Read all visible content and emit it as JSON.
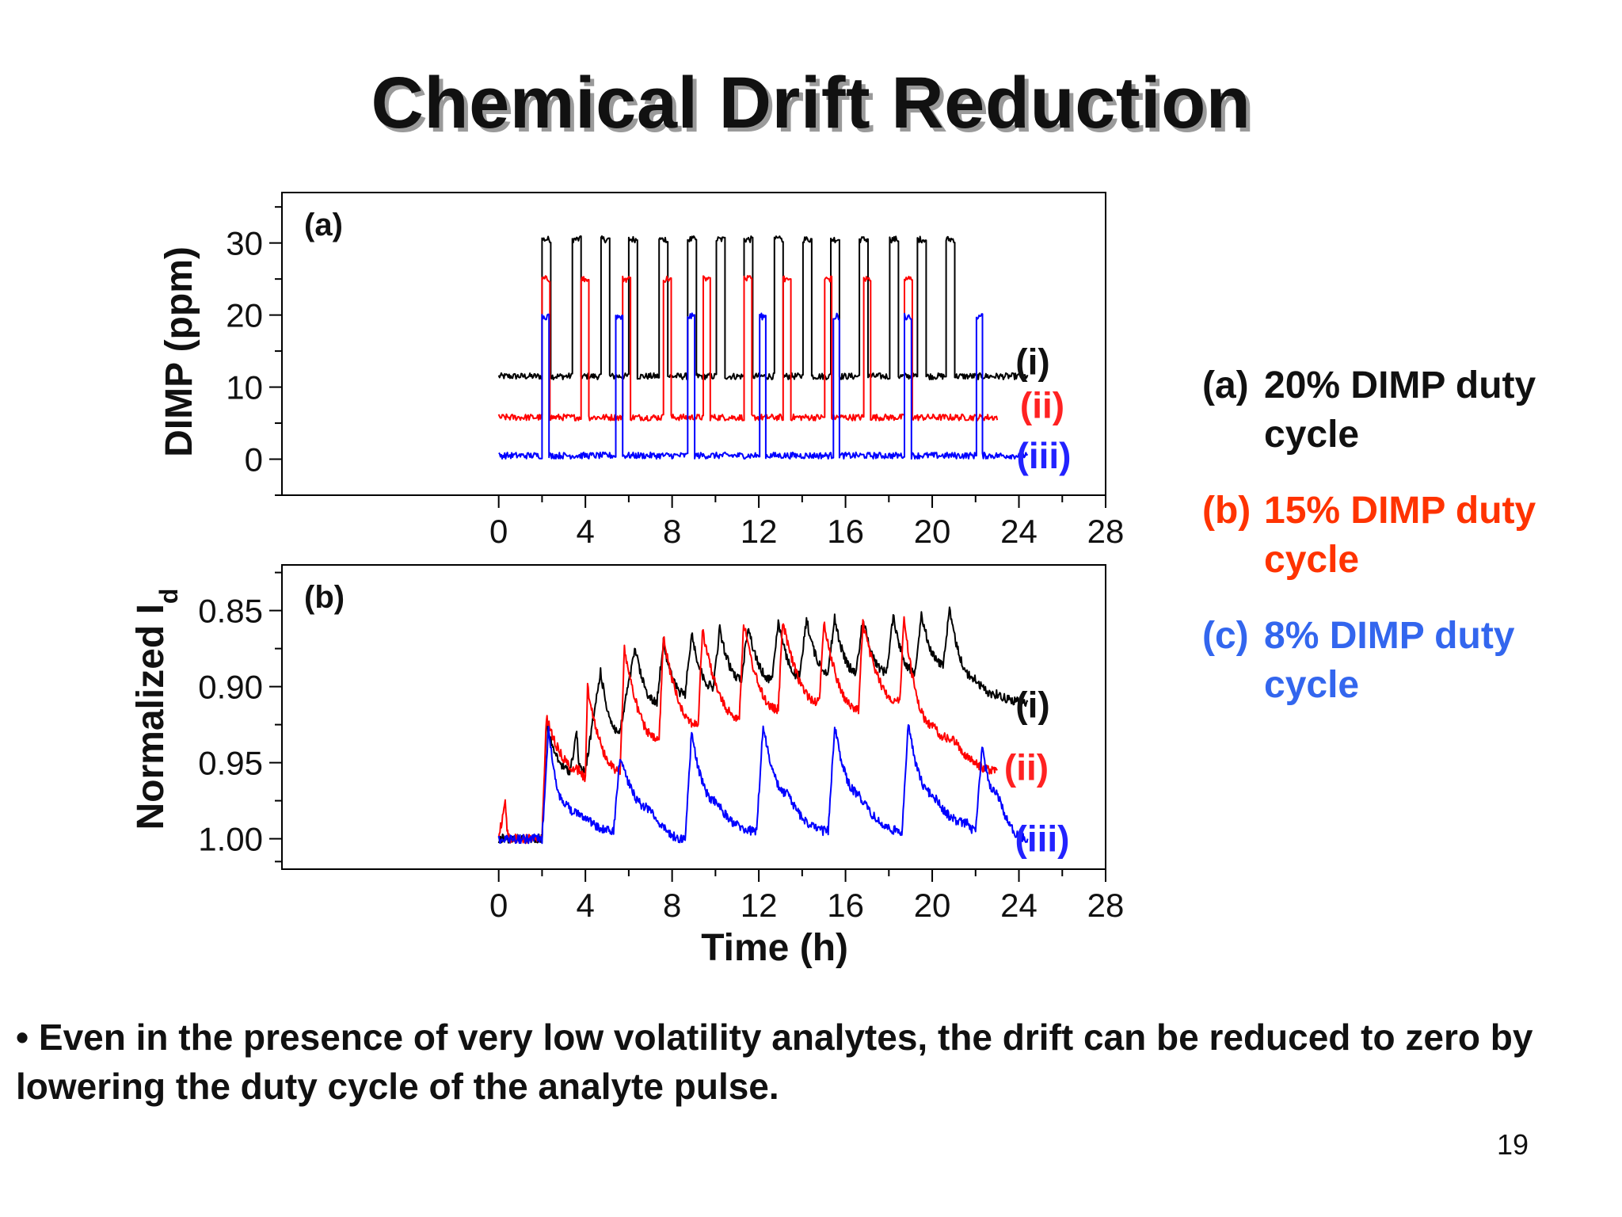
{
  "slide": {
    "title": "Chemical Drift Reduction",
    "bullet": "• Even in the presence of very low volatility analytes, the drift can be reduced to zero by lowering the duty cycle of the analyte pulse.",
    "page_number": "19"
  },
  "legend": {
    "items": [
      {
        "label": "(a)",
        "text_line1": "20% DIMP duty",
        "text_line2": "cycle",
        "color": "#111111"
      },
      {
        "label": "(b)",
        "text_line1": "15% DIMP duty",
        "text_line2": "cycle",
        "color": "#ff3300"
      },
      {
        "label": "(c)",
        "text_line1": "8% DIMP duty",
        "text_line2": "cycle",
        "color": "#3366ee"
      }
    ]
  },
  "chart_data": [
    {
      "type": "line",
      "panel_label": "(a)",
      "xlabel": "",
      "ylabel": "DIMP (ppm)",
      "xlim": [
        -10,
        28
      ],
      "ylim": [
        -5,
        37
      ],
      "xticks": [
        0,
        4,
        8,
        12,
        16,
        20,
        24,
        28
      ],
      "yticks": [
        0,
        10,
        20,
        30
      ],
      "series": [
        {
          "name": "(i)",
          "color": "#000000",
          "baseline": 11.5,
          "pulse_height": 30.5,
          "pulse_width": 0.4,
          "x_end": 24.4,
          "pulse_starts": [
            2.0,
            3.4,
            4.7,
            6.0,
            7.4,
            8.7,
            10.0,
            11.3,
            12.7,
            14.0,
            15.3,
            16.6,
            18.0,
            19.3,
            20.6
          ]
        },
        {
          "name": "(ii)",
          "color": "#ff0000",
          "baseline": 5.8,
          "pulse_height": 25.0,
          "pulse_width": 0.35,
          "x_end": 23.0,
          "pulse_starts": [
            2.0,
            3.8,
            5.7,
            7.6,
            9.4,
            11.3,
            13.1,
            15.0,
            16.8,
            18.7
          ]
        },
        {
          "name": "(iii)",
          "color": "#0000ff",
          "baseline": 0.5,
          "pulse_height": 19.8,
          "pulse_width": 0.3,
          "x_end": 24.4,
          "pulse_starts": [
            2.0,
            5.4,
            8.7,
            12.0,
            15.4,
            18.7,
            22.0
          ]
        }
      ]
    },
    {
      "type": "line",
      "panel_label": "(b)",
      "xlabel": "Time (h)",
      "ylabel": "Normalized I",
      "ylabel_subscript": "d",
      "xlim": [
        -10,
        28
      ],
      "ylim": [
        1.02,
        0.82
      ],
      "y_inverted": true,
      "xticks": [
        0,
        4,
        8,
        12,
        16,
        20,
        24,
        28
      ],
      "yticks": [
        "0.85",
        "0.90",
        "0.95",
        "1.00"
      ],
      "series": [
        {
          "name": "(i)",
          "color": "#000000",
          "points": [
            [
              0,
              1.0
            ],
            [
              2.0,
              1.0
            ],
            [
              2.2,
              0.925
            ],
            [
              3.3,
              0.955
            ],
            [
              3.6,
              0.93
            ],
            [
              3.6,
              0.93
            ],
            [
              3.8,
              0.955
            ],
            [
              4.0,
              0.955
            ],
            [
              4.7,
              0.89
            ],
            [
              5.6,
              0.93
            ],
            [
              5.9,
              0.905
            ],
            [
              6.3,
              0.875
            ],
            [
              7.3,
              0.91
            ],
            [
              7.6,
              0.87
            ],
            [
              8.6,
              0.905
            ],
            [
              8.9,
              0.865
            ],
            [
              9.9,
              0.9
            ],
            [
              10.2,
              0.862
            ],
            [
              11.2,
              0.895
            ],
            [
              11.5,
              0.86
            ],
            [
              12.6,
              0.895
            ],
            [
              12.9,
              0.857
            ],
            [
              13.9,
              0.893
            ],
            [
              14.2,
              0.855
            ],
            [
              15.2,
              0.89
            ],
            [
              15.5,
              0.855
            ],
            [
              16.5,
              0.89
            ],
            [
              16.8,
              0.855
            ],
            [
              17.9,
              0.89
            ],
            [
              18.2,
              0.853
            ],
            [
              19.2,
              0.89
            ],
            [
              19.5,
              0.852
            ],
            [
              20.5,
              0.885
            ],
            [
              20.8,
              0.85
            ],
            [
              22.0,
              0.895
            ],
            [
              23.0,
              0.905
            ],
            [
              24.4,
              0.91
            ]
          ]
        },
        {
          "name": "(ii)",
          "color": "#ff0000",
          "points": [
            [
              0,
              1.0
            ],
            [
              0.3,
              0.975
            ],
            [
              0.5,
              1.0
            ],
            [
              2.0,
              1.0
            ],
            [
              2.2,
              0.92
            ],
            [
              3.8,
              0.955
            ],
            [
              4.0,
              0.96
            ],
            [
              4.1,
              0.9
            ],
            [
              5.6,
              0.955
            ],
            [
              5.8,
              0.875
            ],
            [
              7.4,
              0.935
            ],
            [
              7.6,
              0.868
            ],
            [
              9.2,
              0.925
            ],
            [
              9.4,
              0.863
            ],
            [
              11.1,
              0.92
            ],
            [
              11.3,
              0.858
            ],
            [
              12.9,
              0.915
            ],
            [
              13.1,
              0.857
            ],
            [
              14.8,
              0.91
            ],
            [
              15.0,
              0.857
            ],
            [
              16.6,
              0.915
            ],
            [
              16.8,
              0.858
            ],
            [
              18.5,
              0.91
            ],
            [
              18.7,
              0.855
            ],
            [
              20.0,
              0.925
            ],
            [
              21.0,
              0.935
            ],
            [
              23.0,
              0.955
            ]
          ]
        },
        {
          "name": "(iii)",
          "color": "#0000ff",
          "points": [
            [
              0,
              1.0
            ],
            [
              2.0,
              1.0
            ],
            [
              2.3,
              0.925
            ],
            [
              3.0,
              0.975
            ],
            [
              4.0,
              0.985
            ],
            [
              5.3,
              0.995
            ],
            [
              5.6,
              0.945
            ],
            [
              7.0,
              0.98
            ],
            [
              8.6,
              1.0
            ],
            [
              8.9,
              0.93
            ],
            [
              10.0,
              0.975
            ],
            [
              11.9,
              0.995
            ],
            [
              12.2,
              0.925
            ],
            [
              13.3,
              0.97
            ],
            [
              15.2,
              0.995
            ],
            [
              15.5,
              0.925
            ],
            [
              16.6,
              0.97
            ],
            [
              18.6,
              0.995
            ],
            [
              18.9,
              0.925
            ],
            [
              20.0,
              0.97
            ],
            [
              21.7,
              0.99
            ],
            [
              22.0,
              0.995
            ],
            [
              22.3,
              0.94
            ],
            [
              23.0,
              0.97
            ],
            [
              24.4,
              1.0
            ]
          ]
        }
      ]
    }
  ]
}
